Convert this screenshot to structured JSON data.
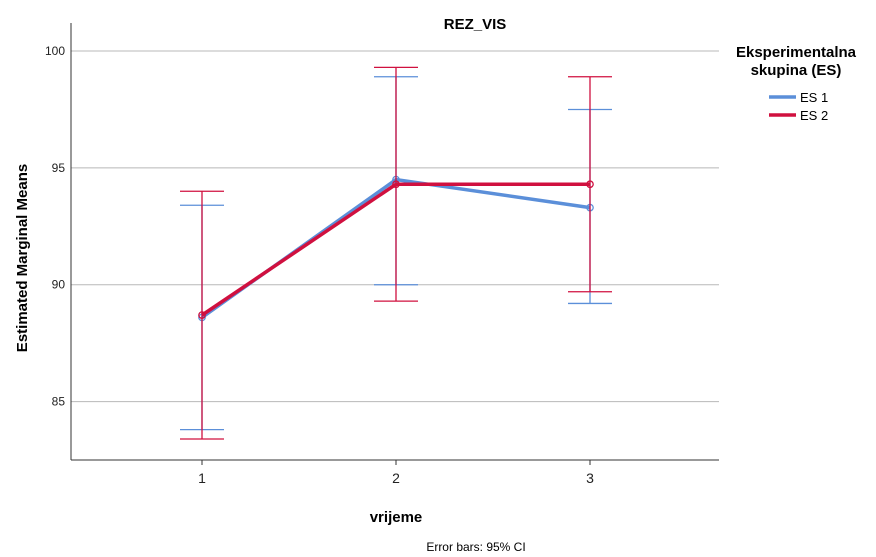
{
  "chart_data": {
    "type": "line",
    "title": "REZ_VIS",
    "xlabel": "vrijeme",
    "ylabel": "Estimated Marginal Means",
    "categories": [
      "1",
      "2",
      "3"
    ],
    "ylim": [
      82.5,
      101.2
    ],
    "yticks": [
      85,
      90,
      95,
      100
    ],
    "grid": true,
    "legend": {
      "title_line1": "Eksperimentalna",
      "title_line2": "skupina (ES)",
      "placement": "right"
    },
    "series": [
      {
        "name": "ES 1",
        "color": "#5b8fd9",
        "values": [
          88.6,
          94.5,
          93.3
        ],
        "ci_lower": [
          83.8,
          90.0,
          89.2
        ],
        "ci_upper": [
          93.4,
          98.9,
          97.5
        ]
      },
      {
        "name": "ES 2",
        "color": "#d0103f",
        "values": [
          88.7,
          94.3,
          94.3
        ],
        "ci_lower": [
          83.4,
          89.3,
          89.7
        ],
        "ci_upper": [
          94.0,
          99.3,
          98.9
        ]
      }
    ],
    "footnote": "Error bars: 95% CI"
  }
}
